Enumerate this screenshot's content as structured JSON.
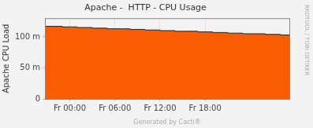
{
  "chart_data": {
    "type": "area",
    "title": "Apache -  HTTP - CPU Usage",
    "y_label": "Apache CPU Load",
    "annotations": [
      "RRDTOOL / TOBI OETIKER",
      "Generated by Cacti®"
    ],
    "x": [
      -3.3,
      -2,
      -1,
      0,
      1,
      2,
      3,
      4,
      5,
      6,
      7,
      8,
      9,
      10,
      11,
      12,
      13,
      14,
      15,
      16,
      17,
      18,
      19,
      20,
      21,
      22,
      23,
      24,
      25,
      26,
      27,
      28,
      29,
      29.2
    ],
    "series": [
      {
        "color": "#f95c03",
        "line_style": "stepped",
        "values": [
          0.117,
          0.117,
          0.116,
          0.116,
          0.115,
          0.115,
          0.114,
          0.114,
          0.113,
          0.113,
          0.113,
          0.112,
          0.112,
          0.111,
          0.111,
          0.11,
          0.11,
          0.109,
          0.109,
          0.109,
          0.108,
          0.108,
          0.107,
          0.107,
          0.106,
          0.106,
          0.105,
          0.105,
          0.105,
          0.104,
          0.104,
          0.103,
          0.103,
          0.102
        ]
      }
    ],
    "xlim": [
      -3.3,
      29.2
    ],
    "xticks": [
      {
        "value": 0,
        "label": "Fr 00:00"
      },
      {
        "value": 6,
        "label": "Fr 06:00"
      },
      {
        "value": 12,
        "label": "Fr 12:00"
      },
      {
        "value": 18,
        "label": "Fr 18:00"
      }
    ],
    "ylim": [
      0,
      0.13
    ],
    "yticks": [
      0,
      {
        "value": 0.05,
        "label": "50 m"
      },
      {
        "value": 0.1,
        "label": "100 m"
      }
    ],
    "grid": true
  }
}
